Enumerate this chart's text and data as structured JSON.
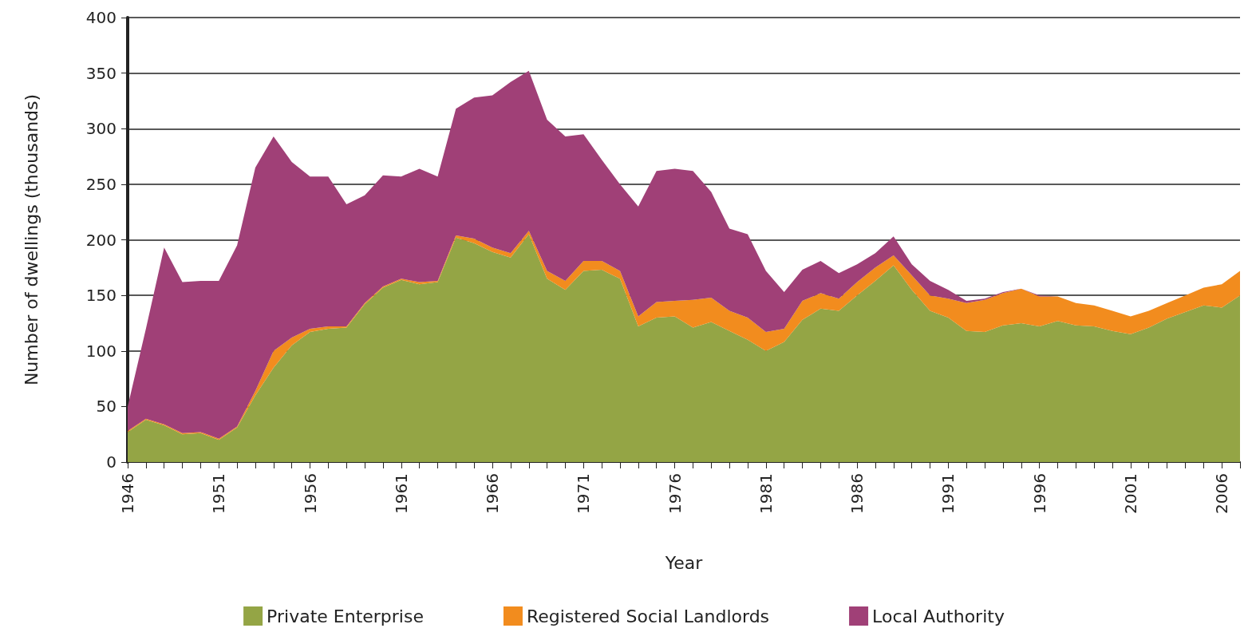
{
  "chart_data": {
    "type": "area",
    "stacked": true,
    "xlabel": "Year",
    "ylabel": "Number of dwellings (thousands)",
    "x": [
      1946,
      1947,
      1948,
      1949,
      1950,
      1951,
      1952,
      1953,
      1954,
      1955,
      1956,
      1957,
      1958,
      1959,
      1960,
      1961,
      1962,
      1963,
      1964,
      1965,
      1966,
      1967,
      1968,
      1969,
      1970,
      1971,
      1972,
      1973,
      1974,
      1975,
      1976,
      1977,
      1978,
      1979,
      1980,
      1981,
      1982,
      1983,
      1984,
      1985,
      1986,
      1987,
      1988,
      1989,
      1990,
      1991,
      1992,
      1993,
      1994,
      1995,
      1996,
      1997,
      1998,
      1999,
      2000,
      2001,
      2002,
      2003,
      2004,
      2005,
      2006,
      2007
    ],
    "series": [
      {
        "name": "Private Enterprise",
        "color": "#94a545",
        "values": [
          27,
          38,
          33,
          25,
          26,
          20,
          31,
          60,
          85,
          105,
          117,
          120,
          121,
          142,
          157,
          164,
          160,
          162,
          202,
          197,
          189,
          184,
          205,
          165,
          155,
          172,
          173,
          165,
          122,
          130,
          131,
          121,
          126,
          118,
          110,
          100,
          108,
          128,
          138,
          136,
          150,
          163,
          177,
          155,
          136,
          130,
          118,
          117,
          123,
          125,
          122,
          127,
          123,
          122,
          118,
          115,
          121,
          129,
          135,
          141,
          139,
          150
        ]
      },
      {
        "name": "Registered Social Landlords",
        "color": "#f28c1e",
        "values": [
          1,
          1,
          1,
          1,
          1,
          1,
          1,
          4,
          15,
          7,
          3,
          2,
          1,
          1,
          1,
          1,
          2,
          1,
          2,
          4,
          4,
          4,
          3,
          7,
          8,
          9,
          8,
          7,
          9,
          14,
          14,
          25,
          22,
          18,
          20,
          17,
          12,
          17,
          14,
          11,
          12,
          12,
          9,
          13,
          14,
          17,
          25,
          29,
          29,
          31,
          27,
          22,
          20,
          19,
          18,
          16,
          15,
          14,
          15,
          16,
          21,
          22
        ]
      },
      {
        "name": "Local Authority",
        "color": "#a04077",
        "values": [
          22,
          81,
          159,
          136,
          136,
          142,
          163,
          201,
          193,
          158,
          137,
          135,
          110,
          97,
          100,
          92,
          102,
          94,
          114,
          127,
          137,
          154,
          144,
          136,
          130,
          114,
          91,
          78,
          99,
          118,
          119,
          116,
          95,
          74,
          75,
          55,
          33,
          28,
          29,
          23,
          16,
          13,
          17,
          10,
          13,
          8,
          2,
          1,
          1,
          0,
          1,
          0,
          0,
          0,
          0,
          0,
          0,
          0,
          0,
          0,
          0,
          0
        ]
      }
    ],
    "xlim": [
      1946,
      2007
    ],
    "xticks": [
      1946,
      {
        "value": 1947,
        "label": null
      },
      {
        "value": 1948,
        "label": null
      },
      {
        "value": 1949,
        "label": null
      },
      {
        "value": 1950,
        "label": null
      },
      1951,
      {
        "value": 1952,
        "label": null
      },
      {
        "value": 1953,
        "label": null
      },
      {
        "value": 1954,
        "label": null
      },
      {
        "value": 1955,
        "label": null
      },
      1956,
      {
        "value": 1957,
        "label": null
      },
      {
        "value": 1958,
        "label": null
      },
      {
        "value": 1959,
        "label": null
      },
      {
        "value": 1960,
        "label": null
      },
      1961,
      {
        "value": 1962,
        "label": null
      },
      {
        "value": 1963,
        "label": null
      },
      {
        "value": 1964,
        "label": null
      },
      {
        "value": 1965,
        "label": null
      },
      1966,
      {
        "value": 1967,
        "label": null
      },
      {
        "value": 1968,
        "label": null
      },
      {
        "value": 1969,
        "label": null
      },
      {
        "value": 1970,
        "label": null
      },
      1971,
      {
        "value": 1972,
        "label": null
      },
      {
        "value": 1973,
        "label": null
      },
      {
        "value": 1974,
        "label": null
      },
      {
        "value": 1975,
        "label": null
      },
      1976,
      {
        "value": 1977,
        "label": null
      },
      {
        "value": 1978,
        "label": null
      },
      {
        "value": 1979,
        "label": null
      },
      {
        "value": 1980,
        "label": null
      },
      1981,
      {
        "value": 1982,
        "label": null
      },
      {
        "value": 1983,
        "label": null
      },
      {
        "value": 1984,
        "label": null
      },
      {
        "value": 1985,
        "label": null
      },
      1986,
      {
        "value": 1987,
        "label": null
      },
      {
        "value": 1988,
        "label": null
      },
      {
        "value": 1989,
        "label": null
      },
      {
        "value": 1990,
        "label": null
      },
      1991,
      {
        "value": 1992,
        "label": null
      },
      {
        "value": 1993,
        "label": null
      },
      {
        "value": 1994,
        "label": null
      },
      {
        "value": 1995,
        "label": null
      },
      1996,
      {
        "value": 1997,
        "label": null
      },
      {
        "value": 1998,
        "label": null
      },
      {
        "value": 1999,
        "label": null
      },
      {
        "value": 2000,
        "label": null
      },
      2001,
      {
        "value": 2002,
        "label": null
      },
      {
        "value": 2003,
        "label": null
      },
      {
        "value": 2004,
        "label": null
      },
      {
        "value": 2005,
        "label": null
      },
      2006,
      {
        "value": 2007,
        "label": null
      }
    ],
    "ylim": [
      0,
      400
    ],
    "yticks": [
      0,
      50,
      100,
      150,
      200,
      250,
      300,
      350,
      400
    ],
    "grid": "y",
    "legend": "bottom",
    "marker": "none"
  }
}
